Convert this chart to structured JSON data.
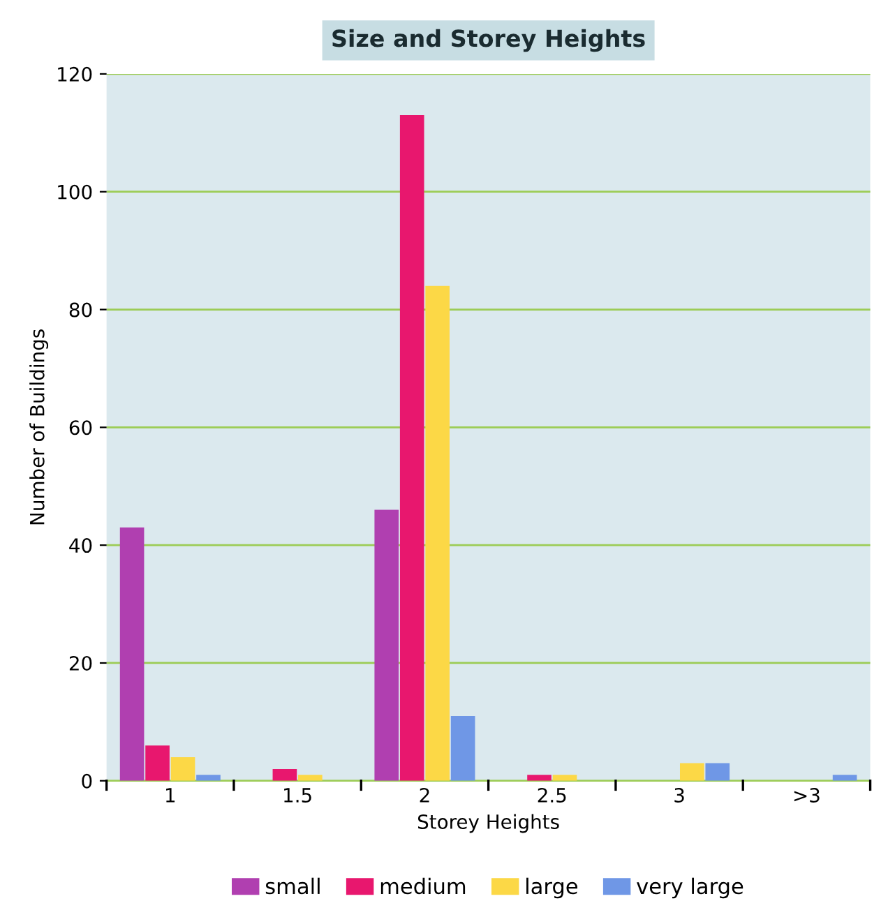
{
  "chart_data": {
    "type": "bar",
    "title": "Size and Storey Heights",
    "xlabel": "Storey Heights",
    "ylabel": "Number of Buildings",
    "categories": [
      "1",
      "1.5",
      "2",
      "2.5",
      "3",
      ">3"
    ],
    "series": [
      {
        "name": "small",
        "color": "#b03fb0",
        "values": [
          43,
          null,
          46,
          null,
          null,
          null
        ]
      },
      {
        "name": "medium",
        "color": "#e8176e",
        "values": [
          6,
          2,
          113,
          1,
          null,
          null
        ]
      },
      {
        "name": "large",
        "color": "#fcd846",
        "values": [
          4,
          1,
          84,
          1,
          3,
          null
        ]
      },
      {
        "name": "very large",
        "color": "#6f97e6",
        "values": [
          1,
          null,
          11,
          null,
          3,
          1
        ]
      }
    ],
    "ylim": [
      0,
      120
    ],
    "yticks": [
      0,
      20,
      40,
      60,
      80,
      100,
      120
    ],
    "grid": "y",
    "legend": "bottom"
  }
}
